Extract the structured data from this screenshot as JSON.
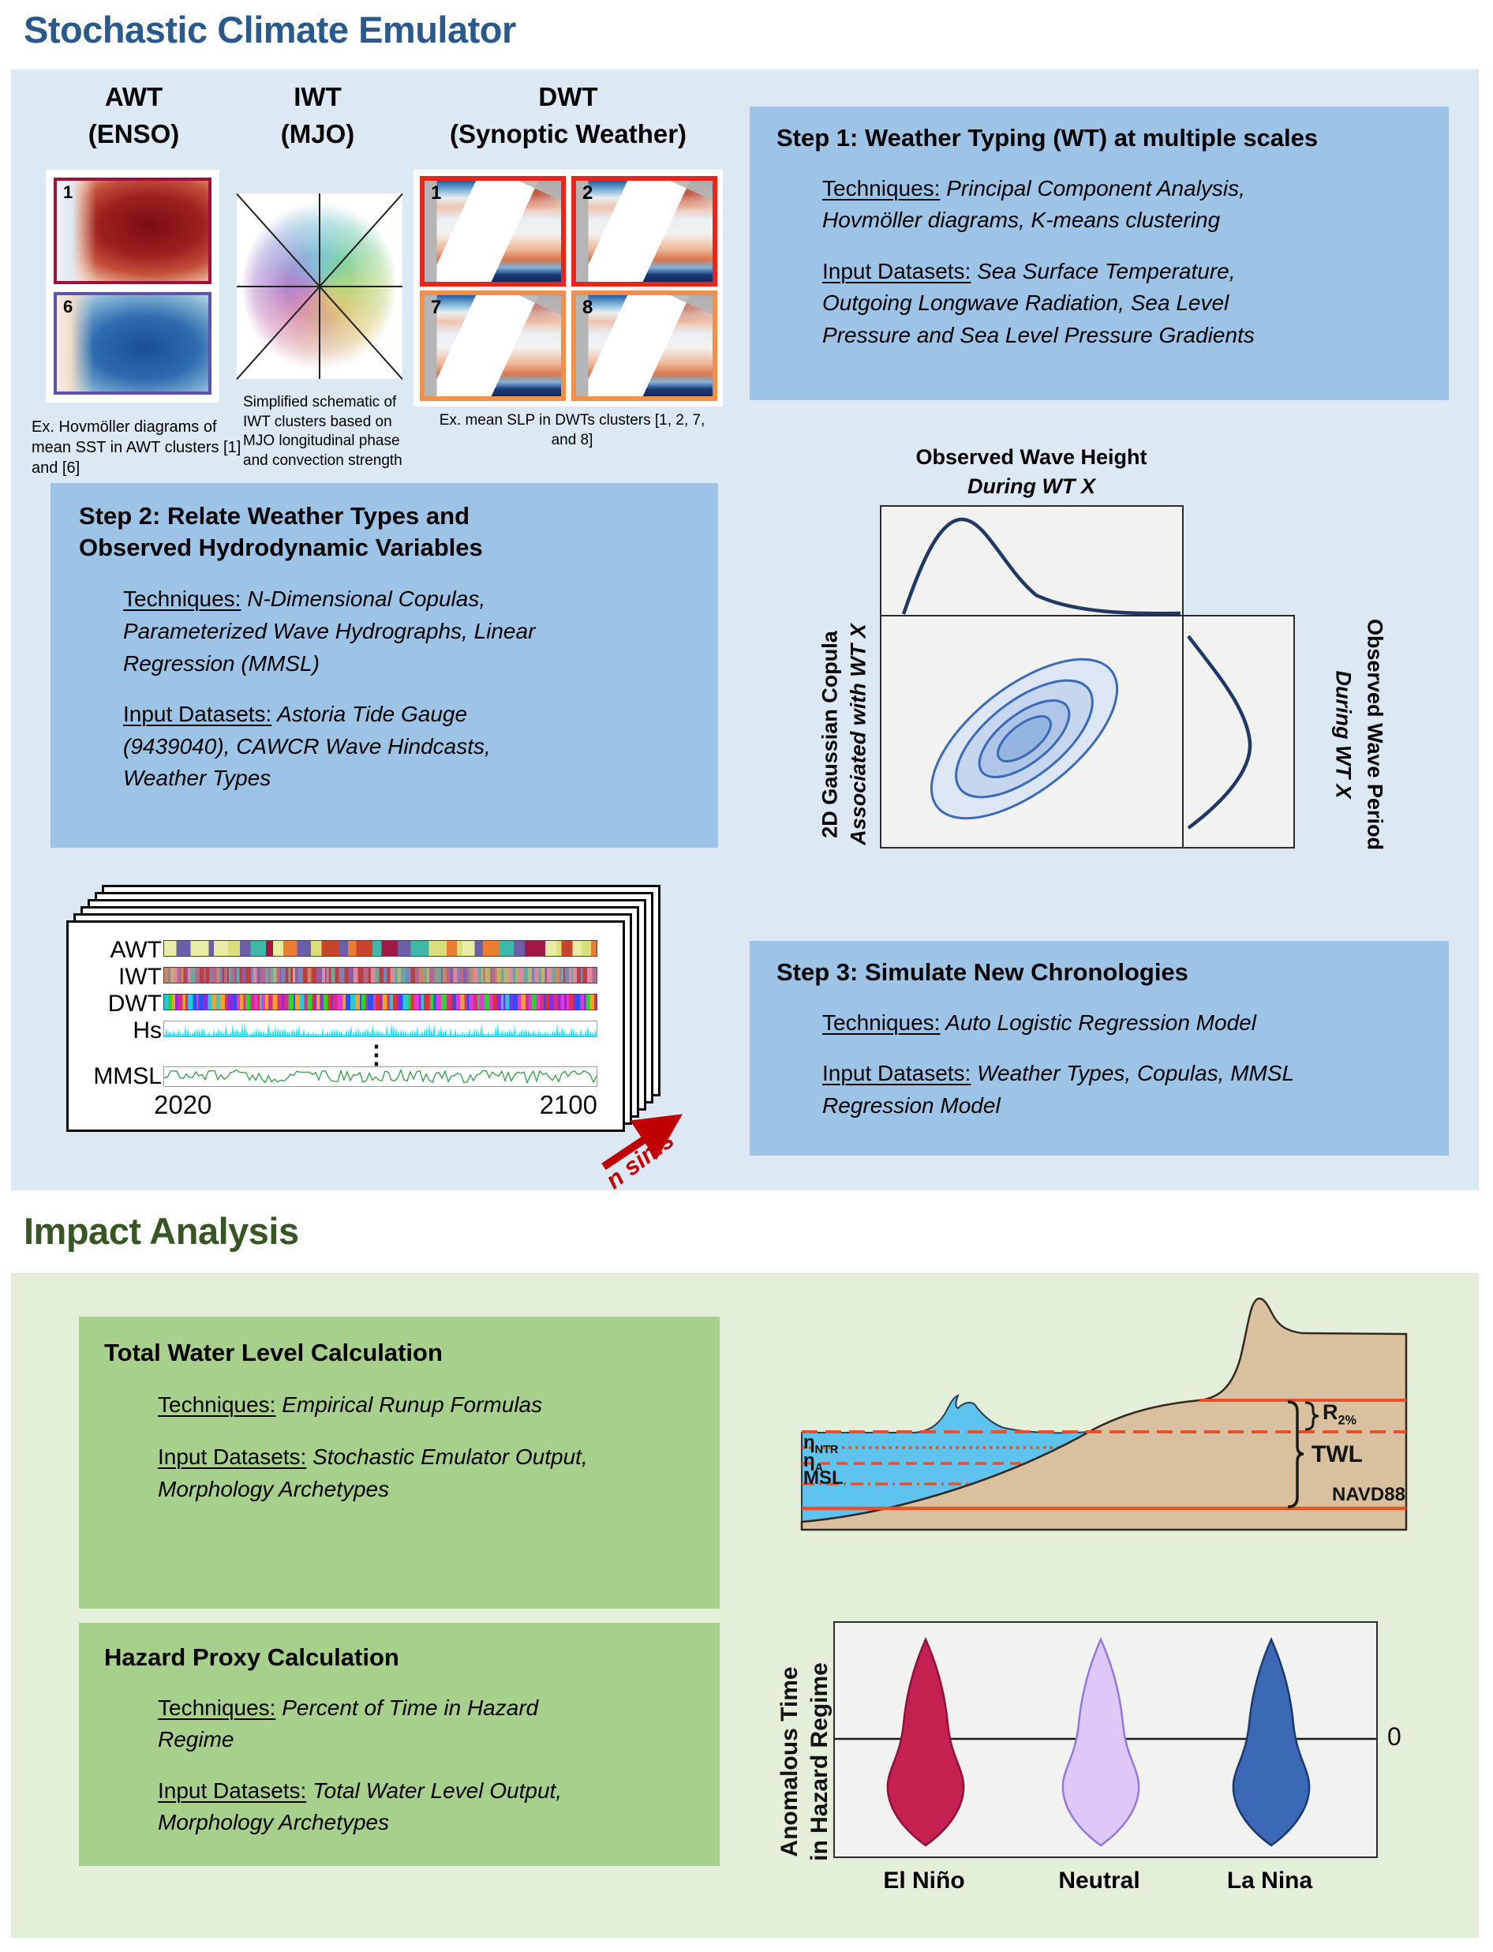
{
  "title": "Stochastic Climate Emulator",
  "impact_title": "Impact Analysis",
  "emulator": {
    "awt": {
      "name": "AWT",
      "scale": "(ENSO)",
      "img_top_label": "1",
      "img_bottom_label": "6",
      "caption": "Ex. Hovmöller diagrams of mean SST in AWT clusters [1] and [6]"
    },
    "iwt": {
      "name": "IWT",
      "scale": "(MJO)",
      "caption": "Simplified schematic of IWT clusters based on MJO longitudinal phase and convection strength"
    },
    "dwt": {
      "name": "DWT",
      "scale": "(Synoptic Weather)",
      "tile_labels": [
        "1",
        "2",
        "7",
        "8"
      ],
      "caption": "Ex. mean SLP in DWTs clusters [1, 2, 7, and 8]"
    },
    "step1": {
      "title": "Step 1: Weather Typing (WT) at multiple scales",
      "tech_label": "Techniques:",
      "tech_lines": [
        " Principal Component Analysis,",
        "Hovmöller diagrams,  K-means clustering"
      ],
      "input_label": "Input Datasets:",
      "input_lines": [
        " Sea Surface Temperature,",
        "Outgoing Longwave Radiation, Sea Level",
        "Pressure and Sea Level Pressure Gradients"
      ]
    },
    "step2": {
      "title_lines": [
        "Step 2: Relate Weather Types and",
        "Observed Hydrodynamic Variables"
      ],
      "tech_label": "Techniques:",
      "tech_lines": [
        " N-Dimensional Copulas,",
        "Parameterized Wave Hydrographs, Linear",
        "Regression (MMSL)"
      ],
      "input_label": "Input Datasets:",
      "input_lines": [
        " Astoria Tide Gauge",
        "(9439040), CAWCR Wave Hindcasts,",
        "Weather Types"
      ]
    },
    "step3": {
      "title": "Step 3: Simulate New Chronologies",
      "tech_label": "Techniques:",
      "tech_lines": [
        " Auto Logistic Regression Model"
      ],
      "input_label": "Input Datasets:",
      "input_lines": [
        " Weather Types, Copulas, MMSL",
        "Regression Model"
      ]
    },
    "copula": {
      "top_title": "Observed Wave Height",
      "top_subtitle": "During WT X",
      "left_title": "2D Gaussian Copula",
      "left_subtitle": "Associated with WT X",
      "right_title": "Observed Wave Period",
      "right_subtitle": "During WT X"
    },
    "cards": {
      "row_labels": [
        "AWT",
        "IWT",
        "DWT",
        "Hs",
        "MMSL"
      ],
      "ellipsis": "⋮",
      "x_start": "2020",
      "x_end": "2100",
      "arrow_label": "n sims"
    }
  },
  "impact": {
    "twl_box": {
      "title": "Total Water Level Calculation",
      "tech_label": "Techniques:",
      "tech_lines": [
        " Empirical Runup Formulas"
      ],
      "input_label": "Input Datasets:",
      "input_lines": [
        " Stochastic Emulator Output,",
        "Morphology Archetypes"
      ]
    },
    "hazard_box": {
      "title": "Hazard Proxy Calculation",
      "tech_label": "Techniques:",
      "tech_lines": [
        " Percent of Time in Hazard",
        "Regime"
      ],
      "input_label": "Input Datasets:",
      "input_lines": [
        " Total Water Level Output,",
        "Morphology Archetypes"
      ]
    },
    "beach": {
      "eta_ntr_base": "η",
      "eta_ntr_sub": "NTR",
      "eta_a_base": "η",
      "eta_a_sub": "A",
      "msl": "MSL",
      "navd": "NAVD88",
      "r2_base": "R",
      "r2_sub": "2%",
      "twl": "TWL"
    },
    "violin": {
      "ylabel_line1": "Anomalous Time",
      "ylabel_line2": "in Hazard Regime",
      "zero": "0",
      "categories": [
        "El Niño",
        "Neutral",
        "La Nina"
      ],
      "fills": [
        "#c42050",
        "#ddc8f7",
        "#3b69b5"
      ],
      "strokes": [
        "#8f1238",
        "#8f7ae0",
        "#1b3a6e"
      ]
    }
  },
  "colors": {
    "title_blue": "#2a5a8c",
    "title_green": "#375623",
    "panel_blue": "#dce9f5",
    "step_blue": "#9dc3e6",
    "panel_green": "#e4efda",
    "green_box": "#a7d08c",
    "orange_line": "#e8502a",
    "navy_curve": "#1f3864",
    "arrow_red": "#c00000",
    "hs_cyan": "#18e0f8",
    "mmsl_green": "#3f9e4f"
  },
  "strips": {
    "awt": {
      "palette": [
        "#ed7d31",
        "#3fb8a8",
        "#a21744",
        "#e9eda2",
        "#6a5fa8",
        "#d9e07a",
        "#c8452b"
      ],
      "segments": 46,
      "min": 5,
      "max": 26,
      "seed": 11
    },
    "iwt": {
      "palette": [
        "#b06a8a",
        "#c98a5e",
        "#7a86b8",
        "#b84040",
        "#8a5fa8",
        "#d98aa0",
        "#6aa8a0",
        "#c0b070"
      ],
      "segments": 130,
      "min": 2,
      "max": 7,
      "seed": 22
    },
    "dwt": {
      "palette": [
        "#2fd42f",
        "#2952f1",
        "#e23ad1",
        "#e23333",
        "#8a2be2",
        "#28c8d8",
        "#f1a229",
        "#d42f8a"
      ],
      "segments": 130,
      "min": 2,
      "max": 7,
      "seed": 33
    }
  }
}
